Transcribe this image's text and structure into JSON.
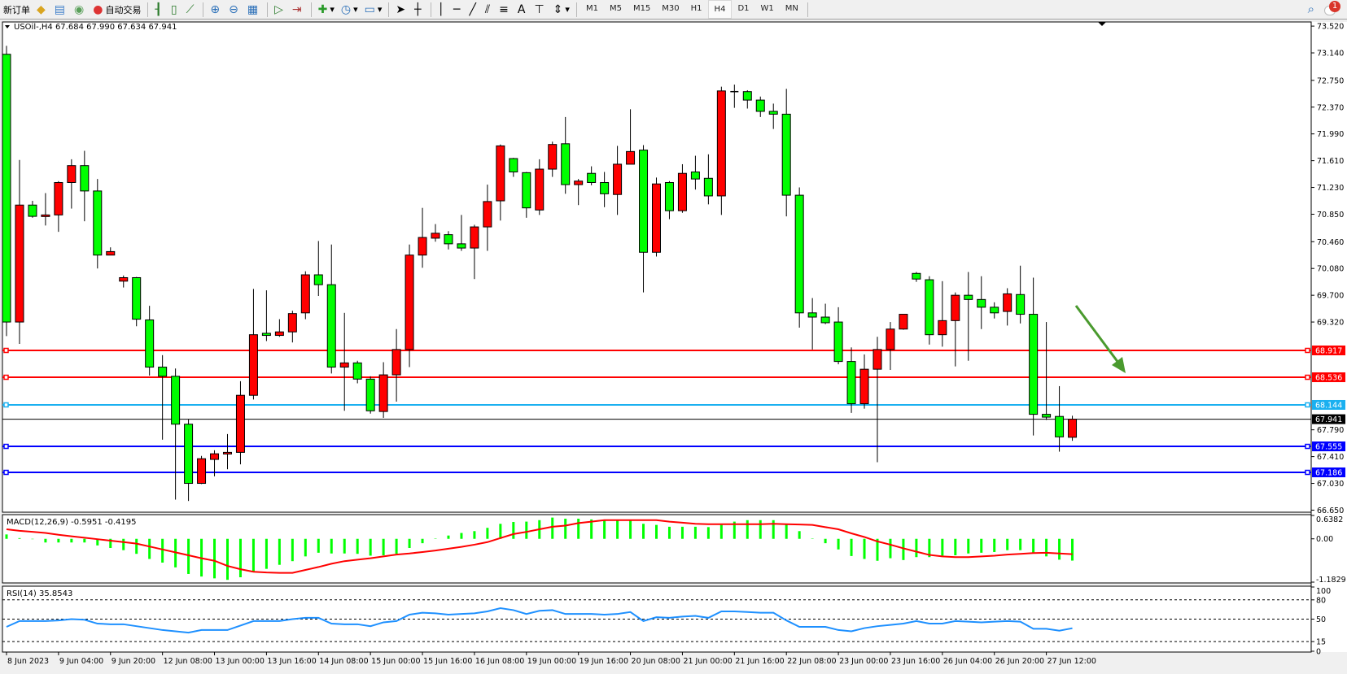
{
  "toolbar": {
    "new_order": "新订单",
    "auto_trading": "自动交易",
    "timeframes": [
      "M1",
      "M5",
      "M15",
      "M30",
      "H1",
      "H4",
      "D1",
      "W1",
      "MN"
    ],
    "active_timeframe": "H4",
    "notification_count": "1",
    "icons": [
      "market-watch-icon",
      "data-window-icon",
      "signals-icon",
      "autotrading-icon",
      "bar-chart-icon",
      "candlestick-icon",
      "line-chart-icon",
      "zoom-in-icon",
      "zoom-out-icon",
      "tile-windows-icon",
      "autoscroll-icon",
      "chart-shift-icon",
      "indicators-icon",
      "periods-icon",
      "templates-icon",
      "cursor-icon",
      "crosshair-icon",
      "vertical-line-icon",
      "horizontal-line-icon",
      "trendline-icon",
      "equidistant-channel-icon",
      "fibonacci-icon",
      "text-icon",
      "text-label-icon",
      "arrows-icon"
    ]
  },
  "chart": {
    "title": "USOil-,H4  67.684 67.990 67.634 67.941",
    "colors": {
      "bull": "#ff0000",
      "bear": "#00ff00",
      "macd_hist": "#00ff00",
      "signal": "#ff0000",
      "rsi": "#1e90ff",
      "arrow": "#4a9a2e"
    },
    "price_ticks": [
      "73.520",
      "73.140",
      "72.750",
      "72.370",
      "71.990",
      "71.610",
      "71.230",
      "70.850",
      "70.460",
      "70.080",
      "69.700",
      "69.320",
      "67.790",
      "67.410",
      "67.030",
      "66.650"
    ],
    "levels": [
      {
        "price": "68.917",
        "color": "#ff0000"
      },
      {
        "price": "68.536",
        "color": "#ff0000"
      },
      {
        "price": "68.144",
        "color": "#1ab0f0"
      },
      {
        "price": "67.941",
        "color": "#000000"
      },
      {
        "price": "67.555",
        "color": "#0000ff"
      },
      {
        "price": "67.186",
        "color": "#0000ff"
      }
    ],
    "time_labels": [
      "8 Jun 2023",
      "9 Jun 04:00",
      "9 Jun 20:00",
      "12 Jun 08:00",
      "13 Jun 00:00",
      "13 Jun 16:00",
      "14 Jun 08:00",
      "15 Jun 00:00",
      "15 Jun 16:00",
      "16 Jun 08:00",
      "19 Jun 00:00",
      "19 Jun 16:00",
      "20 Jun 08:00",
      "21 Jun 00:00",
      "21 Jun 16:00",
      "22 Jun 08:00",
      "23 Jun 00:00",
      "23 Jun 16:00",
      "26 Jun 04:00",
      "26 Jun 20:00",
      "27 Jun 12:00"
    ],
    "macd": {
      "label": "MACD(12,26,9) -0.5951 -0.4195",
      "ticks": [
        "0.6382",
        "0.00",
        "-1.1829"
      ]
    },
    "rsi": {
      "label": "RSI(14) 35.8543",
      "ticks": [
        "100",
        "80",
        "50",
        "15",
        "0"
      ]
    }
  },
  "chart_data": {
    "type": "candlestick",
    "ylim": [
      66.65,
      73.52
    ],
    "ohlc": [
      [
        73.12,
        73.24,
        69.12,
        69.32
      ],
      [
        69.32,
        71.62,
        69.01,
        70.98
      ],
      [
        70.98,
        71.04,
        70.8,
        70.82
      ],
      [
        70.82,
        71.15,
        70.69,
        70.84
      ],
      [
        70.84,
        71.32,
        70.6,
        71.3
      ],
      [
        71.3,
        71.63,
        70.93,
        71.54
      ],
      [
        71.54,
        71.75,
        70.75,
        71.18
      ],
      [
        71.18,
        71.35,
        70.08,
        70.27
      ],
      [
        70.27,
        70.38,
        70.27,
        70.32
      ],
      [
        69.9,
        69.98,
        69.81,
        69.95
      ],
      [
        69.95,
        69.96,
        69.26,
        69.36
      ],
      [
        69.35,
        69.55,
        68.56,
        68.68
      ],
      [
        68.68,
        68.85,
        67.65,
        68.55
      ],
      [
        68.55,
        68.66,
        66.8,
        67.87
      ],
      [
        67.87,
        67.94,
        66.78,
        67.03
      ],
      [
        67.03,
        67.42,
        67.02,
        67.38
      ],
      [
        67.37,
        67.5,
        67.13,
        67.45
      ],
      [
        67.45,
        67.73,
        67.23,
        67.47
      ],
      [
        67.47,
        68.48,
        67.3,
        68.28
      ],
      [
        68.28,
        69.79,
        68.22,
        69.14
      ],
      [
        69.16,
        69.77,
        69.05,
        69.13
      ],
      [
        69.13,
        69.36,
        69.11,
        69.18
      ],
      [
        69.18,
        69.48,
        69.03,
        69.44
      ],
      [
        69.45,
        70.04,
        69.36,
        69.99
      ],
      [
        69.99,
        70.47,
        69.69,
        69.85
      ],
      [
        69.85,
        70.42,
        68.59,
        68.68
      ],
      [
        68.68,
        69.45,
        68.06,
        68.74
      ],
      [
        68.74,
        68.77,
        68.45,
        68.51
      ],
      [
        68.51,
        68.55,
        68.02,
        68.06
      ],
      [
        68.05,
        68.75,
        67.96,
        68.57
      ],
      [
        68.57,
        69.22,
        68.19,
        68.93
      ],
      [
        68.93,
        70.42,
        68.68,
        70.27
      ],
      [
        70.27,
        70.94,
        70.09,
        70.52
      ],
      [
        70.51,
        70.71,
        70.46,
        70.58
      ],
      [
        70.56,
        70.61,
        70.35,
        70.43
      ],
      [
        70.43,
        70.84,
        70.33,
        70.37
      ],
      [
        70.37,
        70.7,
        69.93,
        70.67
      ],
      [
        70.67,
        71.27,
        70.33,
        71.03
      ],
      [
        71.04,
        71.84,
        70.76,
        71.82
      ],
      [
        71.64,
        71.65,
        71.38,
        71.45
      ],
      [
        71.44,
        71.45,
        70.8,
        70.94
      ],
      [
        70.91,
        71.63,
        70.84,
        71.49
      ],
      [
        71.49,
        71.88,
        71.38,
        71.84
      ],
      [
        71.85,
        72.23,
        71.14,
        71.27
      ],
      [
        71.27,
        71.35,
        70.98,
        71.32
      ],
      [
        71.43,
        71.53,
        71.26,
        71.3
      ],
      [
        71.3,
        71.45,
        70.95,
        71.14
      ],
      [
        71.13,
        71.82,
        70.84,
        71.56
      ],
      [
        71.56,
        72.34,
        71.56,
        71.74
      ],
      [
        71.76,
        71.83,
        69.74,
        70.31
      ],
      [
        70.31,
        71.37,
        70.25,
        71.28
      ],
      [
        71.3,
        71.32,
        70.78,
        70.9
      ],
      [
        70.9,
        71.56,
        70.87,
        71.43
      ],
      [
        71.45,
        71.68,
        71.2,
        71.35
      ],
      [
        71.36,
        71.7,
        70.99,
        71.11
      ],
      [
        71.11,
        72.66,
        70.84,
        72.6
      ],
      [
        72.59,
        72.69,
        72.36,
        72.59
      ],
      [
        72.59,
        72.61,
        72.35,
        72.47
      ],
      [
        72.47,
        72.52,
        72.23,
        72.31
      ],
      [
        72.31,
        72.42,
        72.06,
        72.27
      ],
      [
        72.27,
        72.63,
        70.82,
        71.12
      ],
      [
        71.12,
        71.23,
        69.24,
        69.45
      ],
      [
        69.45,
        69.66,
        68.93,
        69.39
      ],
      [
        69.39,
        69.58,
        69.29,
        69.31
      ],
      [
        69.32,
        69.53,
        68.72,
        68.76
      ],
      [
        68.76,
        68.96,
        68.03,
        68.16
      ],
      [
        68.16,
        68.86,
        68.09,
        68.65
      ],
      [
        68.65,
        69.11,
        67.33,
        68.93
      ],
      [
        68.93,
        69.32,
        68.64,
        69.22
      ],
      [
        69.22,
        69.43,
        69.21,
        69.43
      ],
      [
        70.01,
        70.03,
        69.89,
        69.93
      ],
      [
        69.92,
        69.97,
        69.0,
        69.14
      ],
      [
        69.14,
        69.9,
        68.97,
        69.34
      ],
      [
        69.34,
        69.74,
        68.69,
        69.7
      ],
      [
        69.7,
        70.03,
        68.77,
        69.64
      ],
      [
        69.64,
        69.97,
        69.22,
        69.53
      ],
      [
        69.53,
        69.6,
        69.37,
        69.45
      ],
      [
        69.47,
        69.8,
        69.27,
        69.72
      ],
      [
        69.71,
        70.12,
        69.3,
        69.43
      ],
      [
        69.43,
        69.95,
        67.71,
        68.01
      ],
      [
        68.01,
        69.32,
        67.93,
        67.97
      ],
      [
        67.98,
        68.41,
        67.48,
        67.69
      ],
      [
        67.684,
        67.99,
        67.634,
        67.941
      ]
    ],
    "macd_histogram": [
      0.12,
      0.02,
      -0.01,
      -0.1,
      -0.1,
      -0.1,
      -0.1,
      -0.18,
      -0.25,
      -0.31,
      -0.41,
      -0.55,
      -0.65,
      -0.78,
      -0.96,
      -1.03,
      -1.08,
      -1.12,
      -1.05,
      -0.9,
      -0.82,
      -0.71,
      -0.61,
      -0.48,
      -0.38,
      -0.4,
      -0.4,
      -0.41,
      -0.46,
      -0.45,
      -0.41,
      -0.25,
      -0.12,
      0.01,
      0.09,
      0.16,
      0.21,
      0.3,
      0.41,
      0.46,
      0.47,
      0.51,
      0.58,
      0.55,
      0.55,
      0.53,
      0.51,
      0.51,
      0.51,
      0.41,
      0.38,
      0.33,
      0.33,
      0.33,
      0.32,
      0.38,
      0.47,
      0.51,
      0.51,
      0.51,
      0.41,
      0.21,
      0.01,
      -0.12,
      -0.29,
      -0.47,
      -0.55,
      -0.6,
      -0.53,
      -0.58,
      -0.5,
      -0.5,
      -0.46,
      -0.45,
      -0.4,
      -0.38,
      -0.36,
      -0.31,
      -0.31,
      -0.38,
      -0.48,
      -0.57,
      -0.5951
    ],
    "macd_signal": [
      0.26,
      0.22,
      0.19,
      0.16,
      0.11,
      0.07,
      0.03,
      -0.01,
      -0.05,
      -0.09,
      -0.13,
      -0.21,
      -0.29,
      -0.37,
      -0.45,
      -0.53,
      -0.6,
      -0.74,
      -0.83,
      -0.9,
      -0.92,
      -0.93,
      -0.93,
      -0.85,
      -0.77,
      -0.68,
      -0.61,
      -0.57,
      -0.53,
      -0.48,
      -0.43,
      -0.4,
      -0.36,
      -0.32,
      -0.27,
      -0.22,
      -0.16,
      -0.09,
      0.02,
      0.13,
      0.19,
      0.26,
      0.33,
      0.36,
      0.43,
      0.47,
      0.51,
      0.51,
      0.51,
      0.51,
      0.51,
      0.47,
      0.44,
      0.41,
      0.4,
      0.4,
      0.4,
      0.4,
      0.4,
      0.41,
      0.4,
      0.39,
      0.38,
      0.32,
      0.26,
      0.15,
      0.05,
      -0.07,
      -0.16,
      -0.26,
      -0.35,
      -0.44,
      -0.48,
      -0.5,
      -0.5,
      -0.48,
      -0.46,
      -0.43,
      -0.41,
      -0.39,
      -0.38,
      -0.4,
      -0.4195
    ],
    "macd_range": [
      -1.1829,
      0.6382
    ],
    "rsi": [
      38,
      47,
      47,
      47,
      48,
      50,
      49,
      43,
      42,
      42,
      39,
      36,
      33,
      31,
      29,
      33,
      33,
      33,
      40,
      47,
      47,
      47,
      50,
      52,
      52,
      43,
      42,
      42,
      39,
      45,
      47,
      57,
      60,
      59,
      57,
      58,
      59,
      62,
      67,
      64,
      58,
      63,
      64,
      58,
      58,
      58,
      57,
      58,
      61,
      47,
      53,
      52,
      54,
      55,
      52,
      62,
      62,
      61,
      60,
      60,
      48,
      38,
      38,
      38,
      33,
      31,
      36,
      39,
      41,
      43,
      47,
      43,
      43,
      47,
      46,
      45,
      46,
      47,
      46,
      35,
      35,
      32,
      35.8543
    ],
    "rsi_levels": [
      80,
      50,
      15
    ]
  }
}
